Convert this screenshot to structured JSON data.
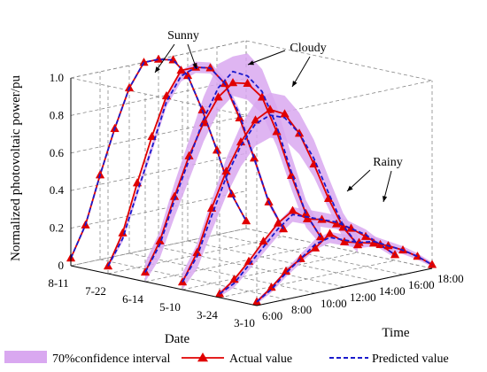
{
  "chart_data": {
    "type": "line",
    "subtype": "3d-waterfall",
    "title": "",
    "ylabel": "Normalized photovoltaic power/pu",
    "xlabel": "Date",
    "zlabel": "Time",
    "ylim": [
      0,
      1.0
    ],
    "y_ticks": [
      "0",
      "0.2",
      "0.4",
      "0.6",
      "0.8",
      "1.0"
    ],
    "date_ticks": [
      "8-11",
      "7-22",
      "6-14",
      "5-10",
      "3-24",
      "3-10"
    ],
    "time_ticks": [
      "6:00",
      "8:00",
      "10:00",
      "12:00",
      "14:00",
      "16:00",
      "18:00"
    ],
    "grid": true,
    "legend_position": "bottom",
    "legend": [
      {
        "label": "70%confidence interval",
        "kind": "band",
        "color": "#d9a8f0"
      },
      {
        "label": "Actual value",
        "kind": "line-marker",
        "color": "#e00000"
      },
      {
        "label": "Predicted value",
        "kind": "dashed-line",
        "color": "#1a1acc"
      }
    ],
    "annotations": [
      "Sunny",
      "Cloudy",
      "Rainy"
    ],
    "colors": {
      "band": "#d9a8f0",
      "actual": "#e00000",
      "predicted": "#1a1acc"
    },
    "time_values": [
      6,
      7,
      8,
      9,
      10,
      11,
      12,
      13,
      14,
      15,
      16,
      17,
      18
    ],
    "series": [
      {
        "date": "8-11",
        "weather": "Sunny",
        "actual": [
          0.04,
          0.2,
          0.45,
          0.68,
          0.88,
          1.0,
          1.0,
          0.98,
          0.88,
          0.68,
          0.45,
          0.2,
          0.04
        ],
        "predicted": [
          0.04,
          0.2,
          0.45,
          0.68,
          0.88,
          1.0,
          1.0,
          0.98,
          0.88,
          0.68,
          0.45,
          0.2,
          0.04
        ],
        "band": 0.0
      },
      {
        "date": "7-22",
        "weather": "Sunny",
        "actual": [
          0.04,
          0.2,
          0.45,
          0.68,
          0.88,
          1.0,
          1.0,
          0.98,
          0.88,
          0.68,
          0.45,
          0.2,
          0.04
        ],
        "predicted": [
          0.04,
          0.17,
          0.4,
          0.62,
          0.85,
          0.97,
          1.0,
          0.98,
          0.88,
          0.7,
          0.45,
          0.2,
          0.04
        ],
        "band": 0.03
      },
      {
        "date": "6-14",
        "weather": "Cloudy",
        "actual": [
          0.05,
          0.2,
          0.42,
          0.62,
          0.78,
          0.9,
          0.96,
          0.94,
          0.85,
          0.65,
          0.4,
          0.18,
          0.04
        ],
        "predicted": [
          0.05,
          0.18,
          0.4,
          0.6,
          0.8,
          0.95,
          1.02,
          0.98,
          0.88,
          0.68,
          0.42,
          0.18,
          0.04
        ],
        "band": 0.13
      },
      {
        "date": "5-10",
        "weather": "Cloudy",
        "actual": [
          0.04,
          0.18,
          0.4,
          0.58,
          0.72,
          0.82,
          0.86,
          0.82,
          0.7,
          0.52,
          0.32,
          0.15,
          0.04
        ],
        "predicted": [
          0.04,
          0.16,
          0.36,
          0.55,
          0.7,
          0.8,
          0.83,
          0.8,
          0.7,
          0.55,
          0.35,
          0.16,
          0.04
        ],
        "band": 0.12
      },
      {
        "date": "3-24",
        "weather": "Rainy",
        "actual": [
          0.02,
          0.08,
          0.16,
          0.25,
          0.33,
          0.38,
          0.32,
          0.3,
          0.26,
          0.22,
          0.16,
          0.1,
          0.03
        ],
        "predicted": [
          0.02,
          0.06,
          0.14,
          0.22,
          0.3,
          0.36,
          0.33,
          0.3,
          0.27,
          0.22,
          0.17,
          0.1,
          0.03
        ],
        "band": 0.04
      },
      {
        "date": "3-10",
        "weather": "Rainy",
        "actual": [
          0.02,
          0.08,
          0.15,
          0.2,
          0.24,
          0.3,
          0.24,
          0.22,
          0.2,
          0.17,
          0.13,
          0.08,
          0.02
        ],
        "predicted": [
          0.02,
          0.07,
          0.14,
          0.2,
          0.26,
          0.28,
          0.25,
          0.22,
          0.21,
          0.17,
          0.13,
          0.08,
          0.02
        ],
        "band": 0.03
      }
    ]
  }
}
